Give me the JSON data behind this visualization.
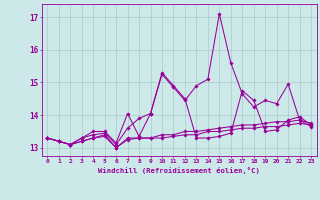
{
  "xlabel": "Windchill (Refroidissement éolien,°C)",
  "bg_color": "#cce8e8",
  "grid_color": "#aacccc",
  "line_color": "#990099",
  "x_ticks": [
    0,
    1,
    2,
    3,
    4,
    5,
    6,
    7,
    8,
    9,
    10,
    11,
    12,
    13,
    14,
    15,
    16,
    17,
    18,
    19,
    20,
    21,
    22,
    23
  ],
  "ylim": [
    12.75,
    17.4
  ],
  "y_ticks": [
    13,
    14,
    15,
    16,
    17
  ],
  "series": [
    [
      13.3,
      13.2,
      13.1,
      13.2,
      13.3,
      13.35,
      13.0,
      13.25,
      13.3,
      13.3,
      13.3,
      13.35,
      13.4,
      13.4,
      13.5,
      13.5,
      13.55,
      13.6,
      13.6,
      13.65,
      13.65,
      13.7,
      13.75,
      13.7
    ],
    [
      13.3,
      13.2,
      13.1,
      13.2,
      13.3,
      13.4,
      13.0,
      13.3,
      13.3,
      13.3,
      13.4,
      13.4,
      13.5,
      13.5,
      13.55,
      13.6,
      13.65,
      13.7,
      13.7,
      13.75,
      13.8,
      13.8,
      13.85,
      13.75
    ],
    [
      13.3,
      13.2,
      13.1,
      13.3,
      13.4,
      13.45,
      13.1,
      13.6,
      13.9,
      14.05,
      15.25,
      14.85,
      14.45,
      14.9,
      15.1,
      17.1,
      15.6,
      14.65,
      14.25,
      14.45,
      14.35,
      14.95,
      13.85,
      13.65
    ],
    [
      13.3,
      13.2,
      13.1,
      13.3,
      13.5,
      13.5,
      13.15,
      14.05,
      13.35,
      14.05,
      15.3,
      14.9,
      14.5,
      13.3,
      13.3,
      13.35,
      13.45,
      14.75,
      14.45,
      13.5,
      13.55,
      13.85,
      13.95,
      13.7
    ]
  ]
}
